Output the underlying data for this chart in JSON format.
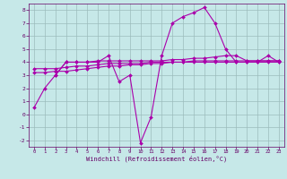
{
  "background_color": "#c6e8e8",
  "grid_color": "#9cbcbc",
  "line_color": "#aa00aa",
  "xlim": [
    -0.5,
    23.5
  ],
  "ylim": [
    -2.5,
    8.5
  ],
  "yticks": [
    -2,
    -1,
    0,
    1,
    2,
    3,
    4,
    5,
    6,
    7,
    8
  ],
  "xticks": [
    0,
    1,
    2,
    3,
    4,
    5,
    6,
    7,
    8,
    9,
    10,
    11,
    12,
    13,
    14,
    15,
    16,
    17,
    18,
    19,
    20,
    21,
    22,
    23
  ],
  "xlabel": "Windchill (Refroidissement éolien,°C)",
  "line1_x": [
    0,
    1,
    2,
    3,
    4,
    5,
    6,
    7,
    8,
    9,
    10,
    11,
    12,
    13,
    14,
    15,
    16,
    17,
    18,
    19,
    20,
    21,
    22,
    23
  ],
  "line1_y": [
    0.5,
    2.0,
    3.0,
    4.0,
    4.0,
    4.0,
    4.0,
    4.5,
    2.5,
    3.0,
    -2.2,
    -0.2,
    4.5,
    7.0,
    7.5,
    7.8,
    8.2,
    7.0,
    5.0,
    4.0,
    4.0,
    4.0,
    4.5,
    4.0
  ],
  "line2_x": [
    2,
    3,
    4,
    5,
    6,
    7,
    8,
    9,
    10,
    11,
    12,
    13,
    14,
    15,
    16,
    17,
    18,
    19,
    20,
    21,
    22,
    23
  ],
  "line2_y": [
    3.0,
    4.0,
    4.0,
    4.0,
    4.1,
    4.1,
    4.1,
    4.1,
    4.1,
    4.1,
    4.1,
    4.2,
    4.2,
    4.3,
    4.3,
    4.4,
    4.5,
    4.5,
    4.1,
    4.1,
    4.1,
    4.1
  ],
  "line3_x": [
    0,
    1,
    2,
    3,
    4,
    5,
    6,
    7,
    8,
    9,
    10,
    11,
    12,
    13,
    14,
    15,
    16,
    17,
    18,
    19,
    20,
    21,
    22,
    23
  ],
  "line3_y": [
    3.5,
    3.5,
    3.5,
    3.6,
    3.7,
    3.7,
    3.8,
    3.9,
    3.9,
    3.9,
    3.9,
    4.0,
    4.0,
    4.0,
    4.0,
    4.1,
    4.1,
    4.1,
    4.1,
    4.1,
    4.1,
    4.1,
    4.1,
    4.1
  ],
  "line4_x": [
    0,
    1,
    2,
    3,
    4,
    5,
    6,
    7,
    8,
    9,
    10,
    11,
    12,
    13,
    14,
    15,
    16,
    17,
    18,
    19,
    20,
    21,
    22,
    23
  ],
  "line4_y": [
    3.2,
    3.2,
    3.3,
    3.3,
    3.4,
    3.5,
    3.6,
    3.7,
    3.7,
    3.8,
    3.8,
    3.9,
    3.9,
    4.0,
    4.0,
    4.0,
    4.0,
    4.0,
    4.0,
    4.0,
    4.0,
    4.0,
    4.0,
    4.0
  ]
}
